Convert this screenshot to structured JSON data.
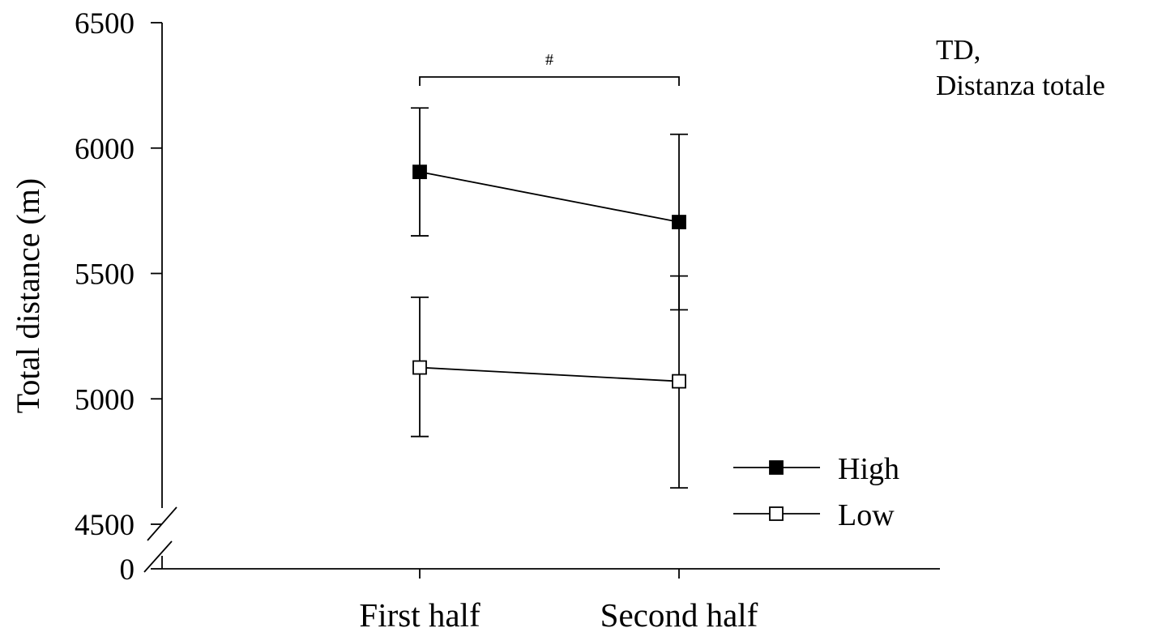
{
  "chart_data": {
    "type": "line",
    "title": "",
    "annotation_lines": [
      "TD,",
      "Distanza totale"
    ],
    "xlabel": "",
    "ylabel": "Total distance (m)",
    "categories": [
      "First half",
      "Second half"
    ],
    "yticks": [
      4500,
      5000,
      5500,
      6000,
      6500
    ],
    "ylim": [
      4500,
      6500
    ],
    "axis_break": true,
    "axis_break_lower_label": "0",
    "grid": false,
    "legend_position": "bottom-right",
    "series": [
      {
        "name": "High",
        "marker": "filled-square",
        "color": "#000000",
        "values": [
          5905,
          5705
        ],
        "error_low": [
          5650,
          5355
        ],
        "error_high": [
          6160,
          6055
        ]
      },
      {
        "name": "Low",
        "marker": "open-square",
        "color": "#000000",
        "values": [
          5125,
          5070
        ],
        "error_low": [
          4850,
          4645
        ],
        "error_high": [
          5405,
          5490
        ]
      }
    ],
    "significance": {
      "symbol": "#",
      "from": 0,
      "to": 1
    }
  }
}
